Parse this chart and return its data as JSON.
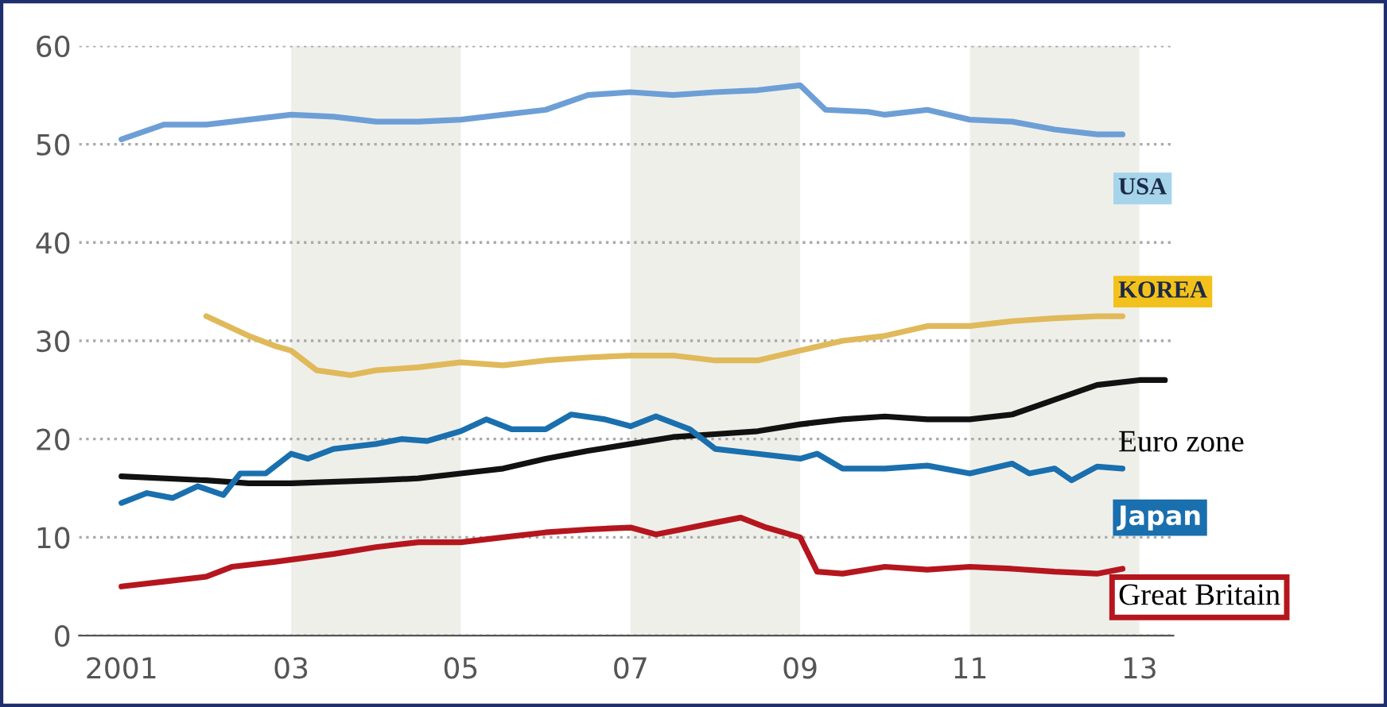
{
  "chart_data": {
    "type": "line",
    "xlim": [
      2000.5,
      2013.4
    ],
    "ylim": [
      0,
      60
    ],
    "xticks": [
      {
        "value": 2001,
        "label": "2001"
      },
      {
        "value": 2003,
        "label": "03"
      },
      {
        "value": 2005,
        "label": "05"
      },
      {
        "value": 2007,
        "label": "07"
      },
      {
        "value": 2009,
        "label": "09"
      },
      {
        "value": 2011,
        "label": "11"
      },
      {
        "value": 2013,
        "label": "13"
      }
    ],
    "yticks": [
      0,
      10,
      20,
      30,
      40,
      50,
      60
    ],
    "grid": "y",
    "legend": false,
    "marker": "none",
    "line_style": "solid",
    "bands": [
      {
        "axis": "x",
        "from": 2003,
        "to": 2005,
        "color": "#efefea"
      },
      {
        "axis": "x",
        "from": 2007,
        "to": 2009,
        "color": "#efefea"
      },
      {
        "axis": "x",
        "from": 2011,
        "to": 2013,
        "color": "#efefea"
      }
    ],
    "series": [
      {
        "name": "USA",
        "color": "#6d9fd6",
        "x": [
          2001,
          2001.5,
          2002,
          2002.5,
          2003,
          2003.5,
          2004,
          2004.5,
          2005,
          2005.5,
          2006,
          2006.5,
          2007,
          2007.5,
          2008,
          2008.5,
          2009,
          2009.3,
          2009.8,
          2010,
          2010.5,
          2011,
          2011.5,
          2012,
          2012.5,
          2012.8
        ],
        "values": [
          50.5,
          52,
          52,
          52.5,
          53,
          52.8,
          52.3,
          52.3,
          52.5,
          53,
          53.5,
          55,
          55.3,
          55,
          55.3,
          55.5,
          56,
          53.5,
          53.3,
          53,
          53.5,
          52.5,
          52.3,
          51.5,
          51,
          51
        ]
      },
      {
        "name": "KOREA",
        "color": "#e0b95a",
        "x": [
          2002,
          2002.5,
          2002.8,
          2003,
          2003.3,
          2003.7,
          2004,
          2004.5,
          2005,
          2005.5,
          2006,
          2006.5,
          2007,
          2007.5,
          2008,
          2008.5,
          2009,
          2009.5,
          2010,
          2010.5,
          2011,
          2011.5,
          2012,
          2012.5,
          2012.8
        ],
        "values": [
          32.5,
          30.5,
          29.5,
          29,
          27,
          26.5,
          27,
          27.3,
          27.8,
          27.5,
          28,
          28.3,
          28.5,
          28.5,
          28,
          28,
          29,
          30,
          30.5,
          31.5,
          31.5,
          32,
          32.3,
          32.5,
          32.5
        ]
      },
      {
        "name": "Euro zone",
        "color": "#111111",
        "x": [
          2001,
          2002,
          2002.5,
          2003,
          2004,
          2004.5,
          2005,
          2005.5,
          2006,
          2006.5,
          2007,
          2007.5,
          2008,
          2008.5,
          2009,
          2009.5,
          2010,
          2010.5,
          2011,
          2011.5,
          2012,
          2012.5,
          2013,
          2013.3
        ],
        "values": [
          16.2,
          15.8,
          15.5,
          15.5,
          15.8,
          16,
          16.5,
          17,
          18,
          18.8,
          19.5,
          20.2,
          20.5,
          20.8,
          21.5,
          22,
          22.3,
          22,
          22,
          22.5,
          24,
          25.5,
          26,
          26
        ]
      },
      {
        "name": "Japan",
        "color": "#1a6fae",
        "x": [
          2001,
          2001.3,
          2001.6,
          2001.9,
          2002.2,
          2002.4,
          2002.7,
          2003,
          2003.2,
          2003.5,
          2004,
          2004.3,
          2004.6,
          2005,
          2005.3,
          2005.6,
          2006,
          2006.3,
          2006.7,
          2007,
          2007.3,
          2007.7,
          2008,
          2008.5,
          2009,
          2009.2,
          2009.5,
          2010,
          2010.5,
          2011,
          2011.5,
          2011.7,
          2012,
          2012.2,
          2012.5,
          2012.8
        ],
        "values": [
          13.5,
          14.5,
          14,
          15.2,
          14.3,
          16.5,
          16.5,
          18.5,
          18,
          19,
          19.5,
          20,
          19.8,
          20.8,
          22,
          21,
          21,
          22.5,
          22,
          21.3,
          22.3,
          21,
          19,
          18.5,
          18,
          18.5,
          17,
          17,
          17.3,
          16.5,
          17.5,
          16.5,
          17,
          15.8,
          17.2,
          17
        ]
      },
      {
        "name": "Great Britain",
        "color": "#b5161e",
        "x": [
          2001,
          2001.5,
          2002,
          2002.3,
          2002.8,
          2003.5,
          2004,
          2004.5,
          2005,
          2005.5,
          2006,
          2006.5,
          2007,
          2007.3,
          2007.6,
          2008,
          2008.3,
          2008.6,
          2009,
          2009.2,
          2009.5,
          2010,
          2010.5,
          2011,
          2011.5,
          2012,
          2012.5,
          2012.8
        ],
        "values": [
          5,
          5.5,
          6,
          7,
          7.5,
          8.3,
          9,
          9.5,
          9.5,
          10,
          10.5,
          10.8,
          11,
          10.3,
          10.8,
          11.5,
          12,
          11,
          10,
          6.5,
          6.3,
          7,
          6.7,
          7,
          6.8,
          6.5,
          6.3,
          6.8
        ]
      }
    ]
  }
}
